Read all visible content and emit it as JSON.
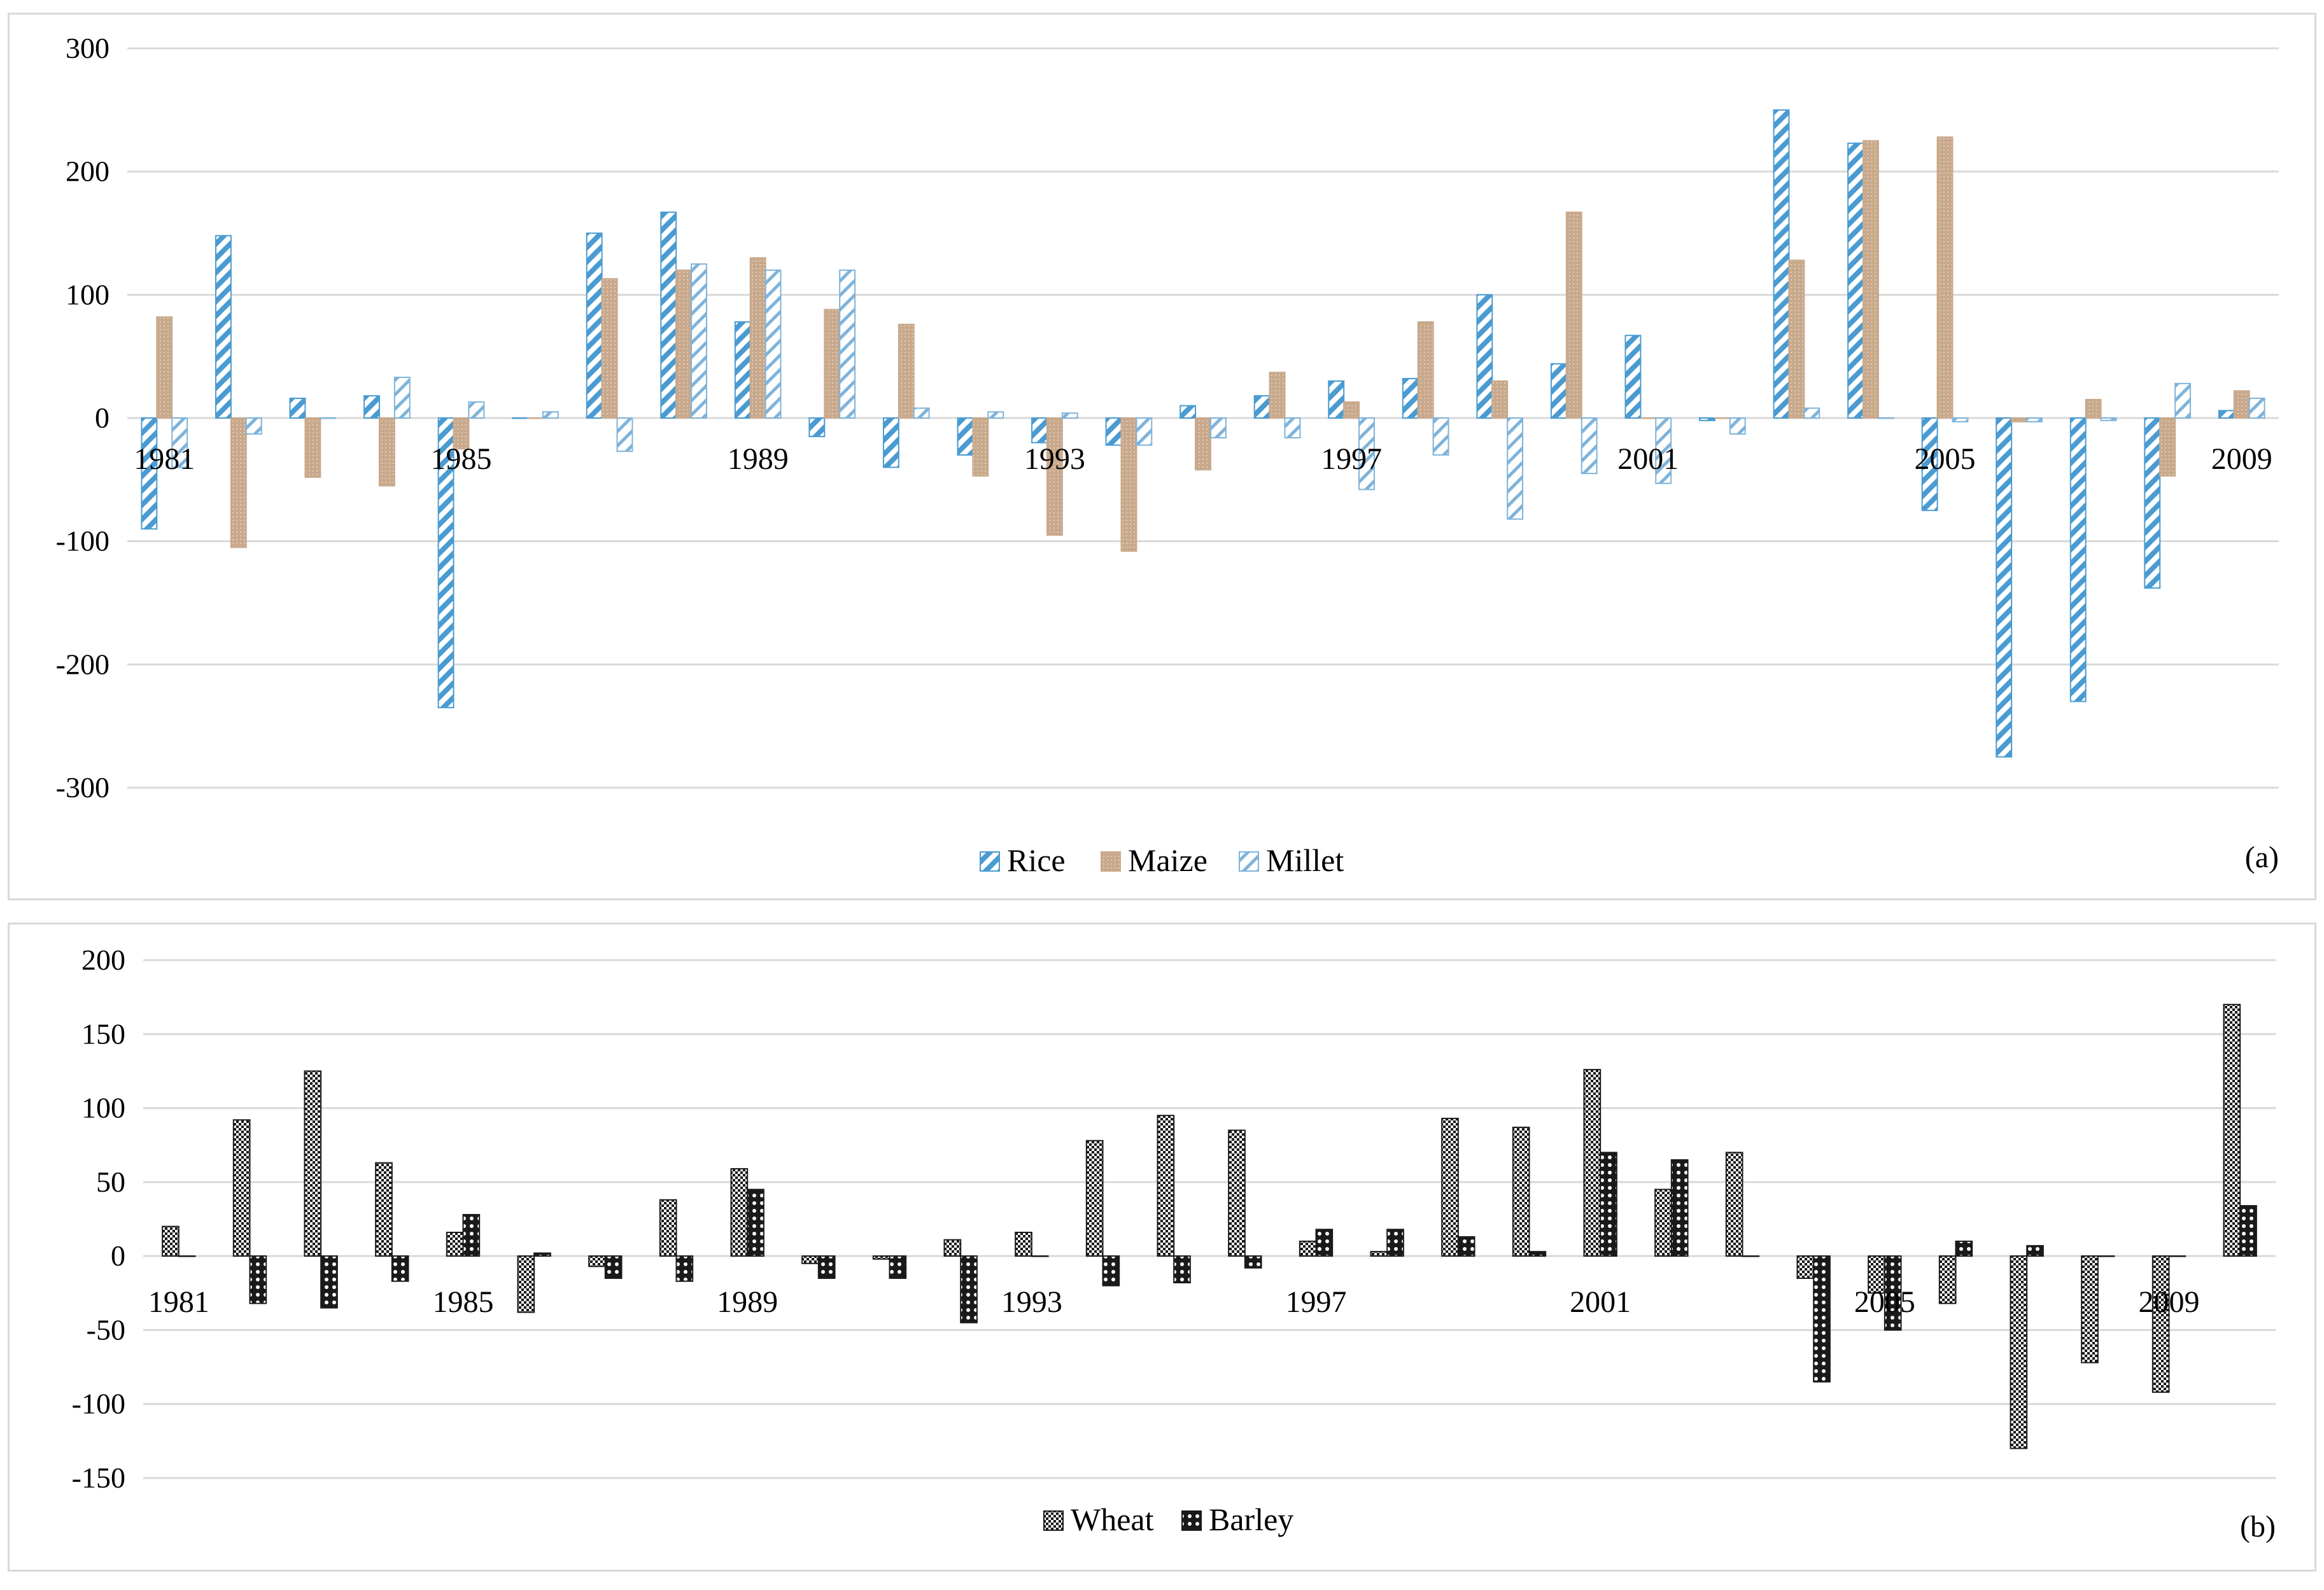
{
  "chart_data": [
    {
      "type": "bar",
      "panel_label": "(a)",
      "ylim": [
        -300,
        300
      ],
      "yticks": [
        -300,
        -200,
        -100,
        0,
        100,
        200,
        300
      ],
      "grid": true,
      "legend_position": "bottom",
      "categories": [
        1981,
        1982,
        1983,
        1984,
        1985,
        1986,
        1987,
        1988,
        1989,
        1990,
        1991,
        1992,
        1993,
        1994,
        1995,
        1996,
        1997,
        1998,
        1999,
        2000,
        2001,
        2002,
        2003,
        2004,
        2005,
        2006,
        2007,
        2008,
        2009
      ],
      "category_labels": [
        "1981",
        "",
        "",
        "",
        "1985",
        "",
        "",
        "",
        "1989",
        "",
        "",
        "",
        "1993",
        "",
        "",
        "",
        "1997",
        "",
        "",
        "",
        "2001",
        "",
        "",
        "",
        "2005",
        "",
        "",
        "",
        "2009"
      ],
      "series": [
        {
          "name": "Rice",
          "pattern": "hatch-dense",
          "color": "#4a9bd1",
          "values": [
            -90,
            148,
            16,
            18,
            -235,
            0,
            150,
            167,
            78,
            -15,
            -40,
            -30,
            -20,
            -22,
            10,
            18,
            30,
            32,
            100,
            44,
            67,
            -2,
            250,
            223,
            -75,
            -275,
            -230,
            -138,
            6
          ]
        },
        {
          "name": "Maize",
          "pattern": "dots",
          "color": "#c9a98c",
          "values": [
            82,
            -105,
            -48,
            -55,
            -25,
            0,
            113,
            120,
            130,
            88,
            76,
            -47,
            -95,
            -108,
            -42,
            37,
            13,
            78,
            30,
            167,
            0,
            0,
            128,
            225,
            228,
            -3,
            15,
            -47,
            22
          ]
        },
        {
          "name": "Millet",
          "pattern": "hatch-light",
          "color": "#7fb3da",
          "values": [
            -40,
            -13,
            0,
            33,
            13,
            5,
            -27,
            125,
            120,
            120,
            8,
            5,
            4,
            -22,
            -16,
            -16,
            -58,
            -30,
            -82,
            -45,
            -53,
            -13,
            8,
            0,
            -3,
            -3,
            -2,
            28,
            16
          ]
        }
      ]
    },
    {
      "type": "bar",
      "panel_label": "(b)",
      "ylim": [
        -150,
        200
      ],
      "yticks": [
        -150,
        -100,
        -50,
        0,
        50,
        100,
        150,
        200
      ],
      "grid": true,
      "legend_position": "bottom",
      "categories": [
        1981,
        1982,
        1983,
        1984,
        1985,
        1986,
        1987,
        1988,
        1989,
        1990,
        1991,
        1992,
        1993,
        1994,
        1995,
        1996,
        1997,
        1998,
        1999,
        2000,
        2001,
        2002,
        2003,
        2004,
        2005,
        2006,
        2007,
        2008,
        2009,
        2010
      ],
      "category_labels": [
        "1981",
        "",
        "",
        "",
        "1985",
        "",
        "",
        "",
        "1989",
        "",
        "",
        "",
        "1993",
        "",
        "",
        "",
        "1997",
        "",
        "",
        "",
        "2001",
        "",
        "",
        "",
        "2005",
        "",
        "",
        "",
        "2009",
        ""
      ],
      "series": [
        {
          "name": "Wheat",
          "pattern": "checker",
          "color": "#1a1a1a",
          "values": [
            20,
            92,
            125,
            63,
            16,
            -38,
            -7,
            38,
            59,
            -5,
            -2,
            11,
            16,
            78,
            95,
            85,
            10,
            3,
            93,
            87,
            126,
            45,
            70,
            -15,
            -25,
            -32,
            -130,
            -72,
            -92,
            170
          ]
        },
        {
          "name": "Barley",
          "pattern": "dots-large",
          "color": "#1a1a1a",
          "values": [
            0,
            -32,
            -35,
            -17,
            28,
            2,
            -15,
            -17,
            45,
            -15,
            -15,
            -45,
            0,
            -20,
            -18,
            -8,
            18,
            18,
            13,
            3,
            70,
            65,
            0,
            -85,
            -50,
            10,
            7,
            0,
            0,
            34
          ]
        }
      ]
    }
  ]
}
